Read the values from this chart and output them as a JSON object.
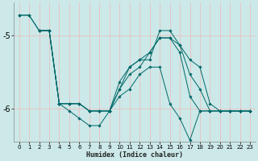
{
  "xlabel": "Humidex (Indice chaleur)",
  "ylabel": "",
  "bg_color": "#cce8e8",
  "grid_color": "#f0b8b8",
  "line_color": "#006868",
  "xlim": [
    -0.5,
    23.5
  ],
  "ylim": [
    -6.45,
    -4.55
  ],
  "yticks": [
    -6,
    -5
  ],
  "xticks": [
    0,
    1,
    2,
    3,
    4,
    5,
    6,
    7,
    8,
    9,
    10,
    11,
    12,
    13,
    14,
    15,
    16,
    17,
    18,
    19,
    20,
    21,
    22,
    23
  ],
  "lines": [
    {
      "x": [
        0,
        1,
        2,
        3,
        4,
        5,
        6,
        7,
        8,
        9,
        10,
        11,
        12,
        13,
        14,
        15,
        16,
        17,
        18,
        19,
        20,
        21,
        22,
        23
      ],
      "y": [
        -4.72,
        -4.72,
        -4.93,
        -4.93,
        -5.93,
        -6.03,
        -6.13,
        -6.23,
        -6.23,
        -6.03,
        -5.83,
        -5.73,
        -5.53,
        -5.43,
        -5.43,
        -5.93,
        -6.13,
        -6.43,
        -6.03,
        -6.03,
        -6.03,
        -6.03,
        -6.03,
        -6.03
      ]
    },
    {
      "x": [
        0,
        1,
        2,
        3,
        4,
        5,
        6,
        7,
        8,
        9,
        10,
        11,
        12,
        13,
        14,
        15,
        16,
        17,
        18,
        19,
        20,
        21,
        22,
        23
      ],
      "y": [
        -4.72,
        -4.72,
        -4.93,
        -4.93,
        -5.93,
        -5.93,
        -5.93,
        -6.03,
        -6.03,
        -6.03,
        -5.73,
        -5.43,
        -5.33,
        -5.23,
        -5.03,
        -5.03,
        -5.23,
        -5.83,
        -6.03,
        -6.03,
        -6.03,
        -6.03,
        -6.03,
        -6.03
      ]
    },
    {
      "x": [
        2,
        3,
        4,
        5,
        6,
        7,
        8,
        9,
        10,
        11,
        12,
        13,
        14,
        15,
        16,
        17,
        18,
        19,
        20,
        21,
        22,
        23
      ],
      "y": [
        -4.93,
        -4.93,
        -5.93,
        -5.93,
        -5.93,
        -6.03,
        -6.03,
        -6.03,
        -5.73,
        -5.53,
        -5.43,
        -5.23,
        -5.03,
        -5.03,
        -5.13,
        -5.53,
        -5.73,
        -6.03,
        -6.03,
        -6.03,
        -6.03,
        -6.03
      ]
    },
    {
      "x": [
        2,
        3,
        4,
        5,
        6,
        7,
        8,
        9,
        10,
        11,
        12,
        13,
        14,
        15,
        16,
        17,
        18,
        19,
        20,
        21,
        22,
        23
      ],
      "y": [
        -4.93,
        -4.93,
        -5.93,
        -5.93,
        -5.93,
        -6.03,
        -6.03,
        -6.03,
        -5.63,
        -5.43,
        -5.33,
        -5.33,
        -4.93,
        -4.93,
        -5.13,
        -5.33,
        -5.43,
        -5.93,
        -6.03,
        -6.03,
        -6.03,
        -6.03
      ]
    }
  ]
}
